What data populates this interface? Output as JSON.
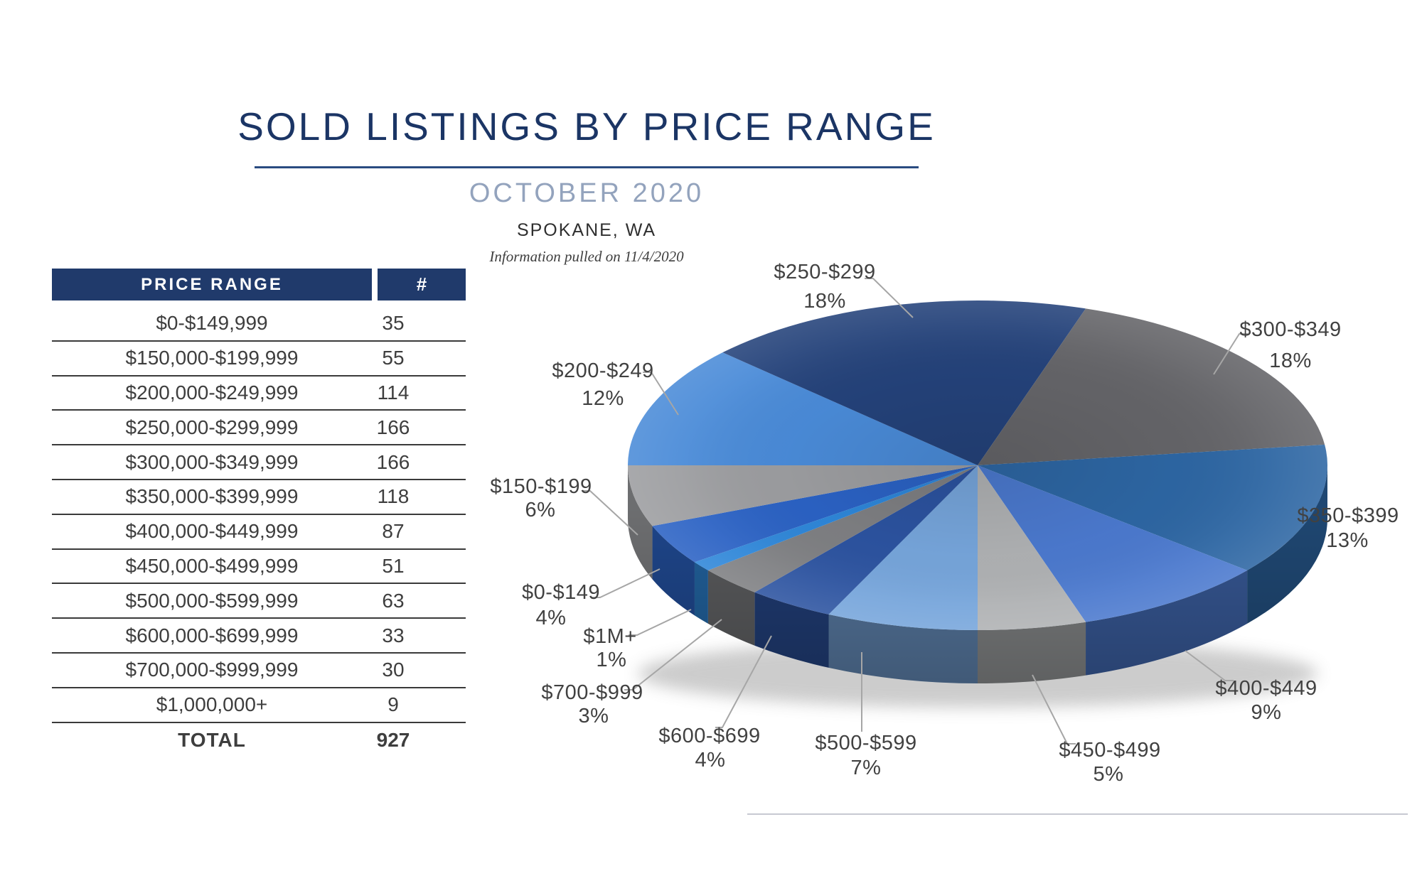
{
  "page": {
    "title": "SOLD LISTINGS BY PRICE RANGE",
    "subtitle": "OCTOBER 2020",
    "location": "SPOKANE, WA",
    "note": "Information pulled on 11/4/2020"
  },
  "table": {
    "headers": [
      "PRICE RANGE",
      "#"
    ],
    "rows": [
      {
        "range": "$0-$149,999",
        "count": "35"
      },
      {
        "range": "$150,000-$199,999",
        "count": "55"
      },
      {
        "range": "$200,000-$249,999",
        "count": "114"
      },
      {
        "range": "$250,000-$299,999",
        "count": "166"
      },
      {
        "range": "$300,000-$349,999",
        "count": "166"
      },
      {
        "range": "$350,000-$399,999",
        "count": "118"
      },
      {
        "range": "$400,000-$449,999",
        "count": "87"
      },
      {
        "range": "$450,000-$499,999",
        "count": "51"
      },
      {
        "range": "$500,000-$599,999",
        "count": "63"
      },
      {
        "range": "$600,000-$699,999",
        "count": "33"
      },
      {
        "range": "$700,000-$999,999",
        "count": "30"
      },
      {
        "range": "$1,000,000+",
        "count": "9"
      }
    ],
    "total_label": "TOTAL",
    "total_value": "927"
  },
  "chart_data": {
    "type": "pie",
    "style": "3d",
    "title": "SOLD LISTINGS BY PRICE RANGE",
    "subtitle": "OCTOBER 2020",
    "unit": "percent",
    "legend": "none",
    "start_angle_deg": 234,
    "slices": [
      {
        "label": "$0-$149",
        "pct": 4,
        "color": "#2B62C4"
      },
      {
        "label": "$150-$199",
        "pct": 6,
        "color": "#9C9DA0"
      },
      {
        "label": "$200-$249",
        "pct": 12,
        "color": "#4A8BD8"
      },
      {
        "label": "$250-$299",
        "pct": 18,
        "color": "#24427A"
      },
      {
        "label": "$300-$349",
        "pct": 18,
        "color": "#646468"
      },
      {
        "label": "$350-$399",
        "pct": 13,
        "color": "#2D66A3"
      },
      {
        "label": "$400-$449",
        "pct": 9,
        "color": "#4B79CE"
      },
      {
        "label": "$450-$499",
        "pct": 5,
        "color": "#AFB1B3"
      },
      {
        "label": "$500-$599",
        "pct": 7,
        "color": "#76A5DB"
      },
      {
        "label": "$600-$699",
        "pct": 4,
        "color": "#2C53A0"
      },
      {
        "label": "$700-$999",
        "pct": 3,
        "color": "#7E7F82"
      },
      {
        "label": "$1M+",
        "pct": 1,
        "color": "#2E86D8"
      }
    ]
  },
  "colors": {
    "header_bg": "#203A6B",
    "title": "#1B3565",
    "subtitle": "#93A3BD",
    "body_text": "#3E3E3E",
    "leader_line": "#A6A6A6",
    "bottom_divider": "#C7C9D1"
  }
}
